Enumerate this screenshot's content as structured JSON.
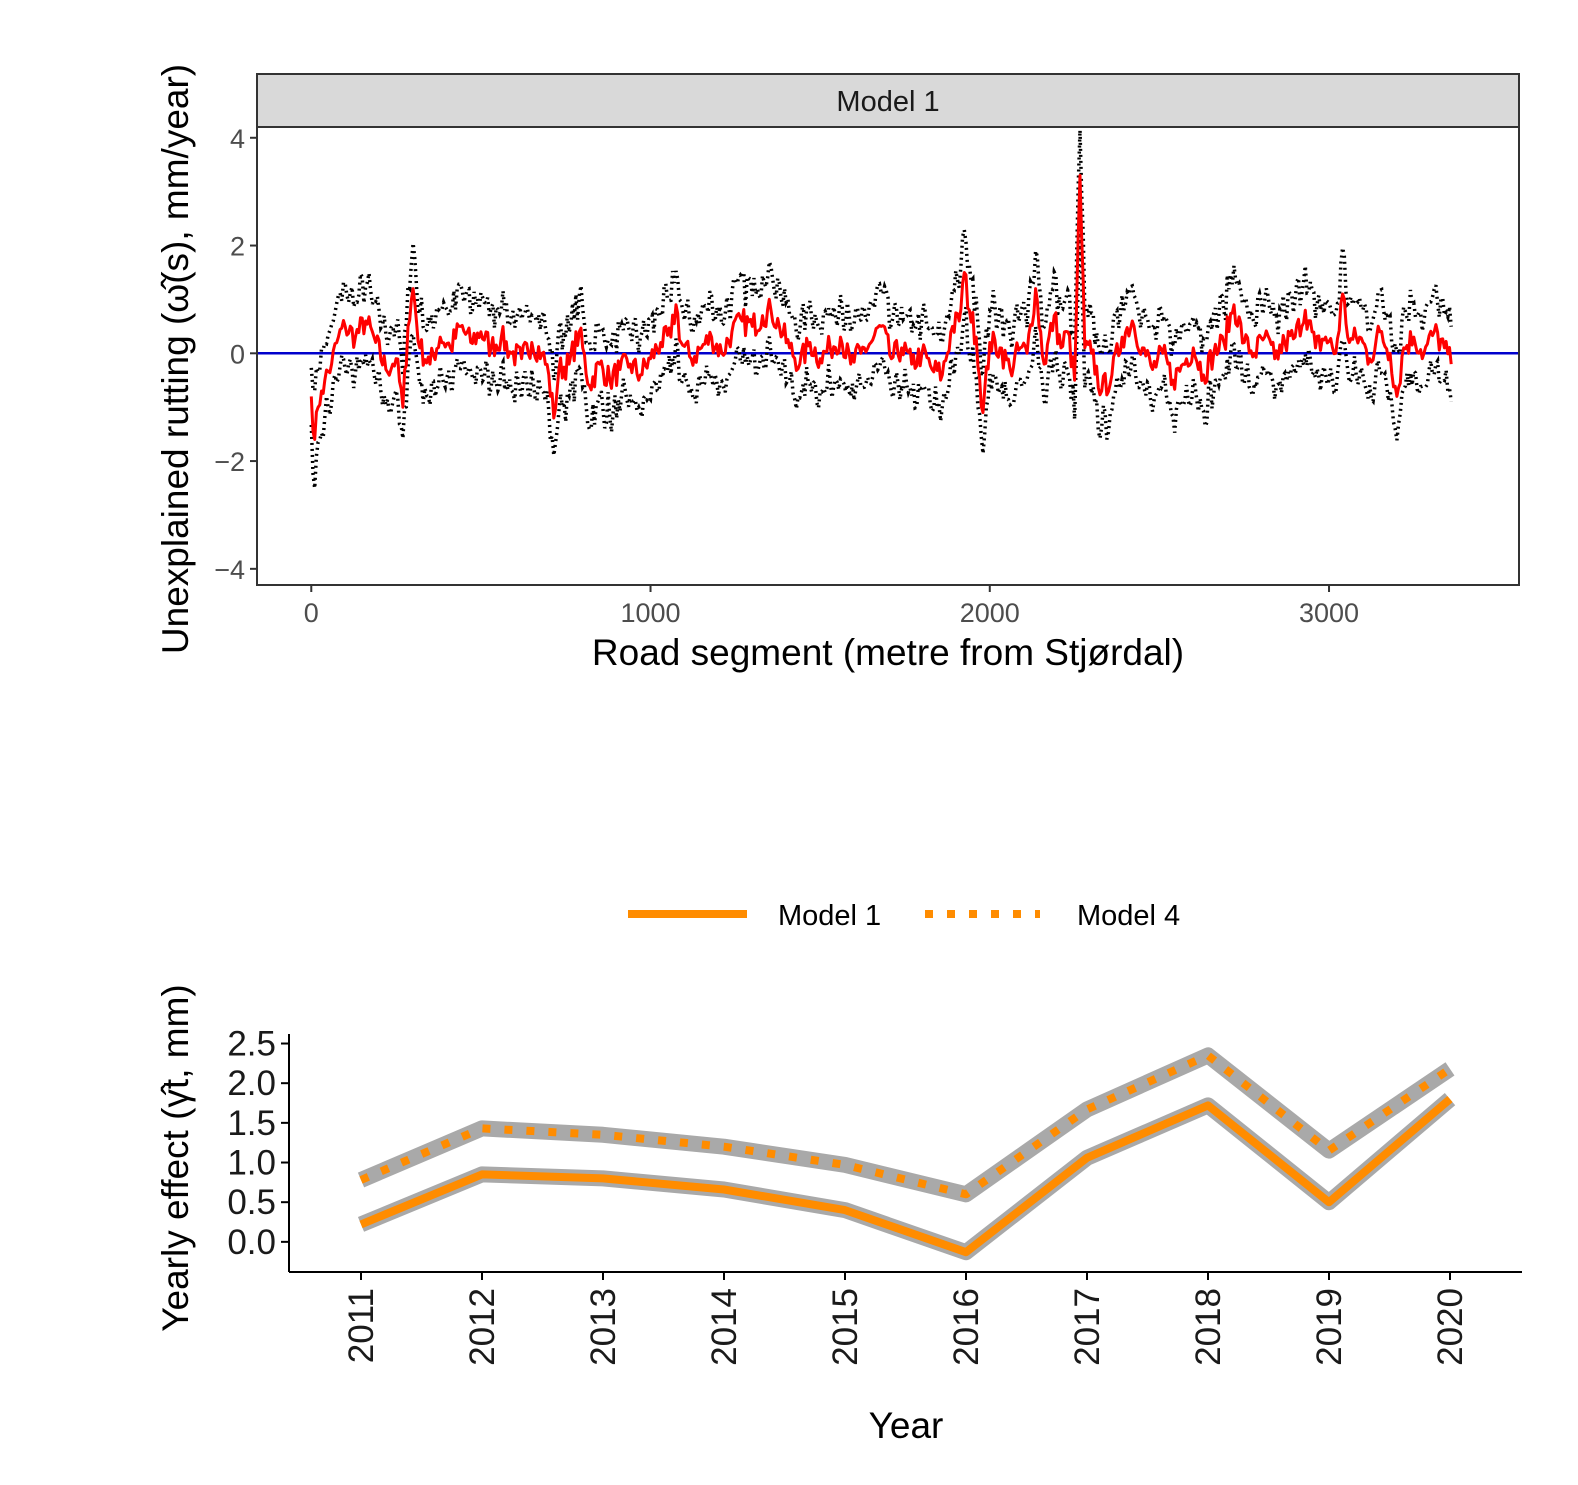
{
  "colors": {
    "estimate_line": "#ff0000",
    "interval_dots": "#000000",
    "zero_line": "#0000cc",
    "yearly_line": "#ff8c00",
    "ribbon": "#a9a9a9",
    "strip_fill": "#d9d9d9",
    "panel_border": "#333333"
  },
  "chart_data": [
    {
      "type": "line",
      "facet_label": "Model 1",
      "xlabel": "Road segment (metre from Stjørdal)",
      "ylabel": "Unexplained rutting (ω̂(s), mm/year)",
      "xlim": [
        -160,
        3560
      ],
      "ylim": [
        -4.3,
        4.2
      ],
      "xticks": [
        0,
        1000,
        2000,
        3000
      ],
      "xtick_labels": [
        "0",
        "1000",
        "2000",
        "3000"
      ],
      "yticks": [
        -4,
        -2,
        0,
        2,
        4
      ],
      "ytick_labels": [
        "−4",
        "−2",
        "0",
        "2",
        "4"
      ],
      "grid": false,
      "reference_line_y": 0,
      "series": [
        {
          "style": "solid",
          "x": [
            0,
            10,
            20,
            30,
            40,
            60,
            80,
            100,
            130,
            160,
            190,
            220,
            250,
            270,
            285,
            300,
            320,
            350,
            380,
            410,
            440,
            470,
            500,
            530,
            560,
            590,
            620,
            650,
            680,
            700,
            715,
            730,
            760,
            790,
            820,
            850,
            880,
            910,
            940,
            970,
            1000,
            1030,
            1060,
            1075,
            1090,
            1120,
            1150,
            1180,
            1210,
            1240,
            1270,
            1300,
            1330,
            1355,
            1380,
            1410,
            1440,
            1470,
            1500,
            1530,
            1560,
            1590,
            1620,
            1650,
            1680,
            1710,
            1740,
            1770,
            1800,
            1830,
            1860,
            1890,
            1910,
            1925,
            1940,
            1960,
            1980,
            2000,
            2030,
            2060,
            2090,
            2110,
            2135,
            2160,
            2190,
            2210,
            2230,
            2250,
            2266,
            2280,
            2300,
            2330,
            2360,
            2390,
            2420,
            2450,
            2480,
            2510,
            2540,
            2570,
            2600,
            2630,
            2660,
            2690,
            2720,
            2750,
            2780,
            2810,
            2840,
            2870,
            2900,
            2930,
            2960,
            2990,
            3020,
            3040,
            3060,
            3090,
            3120,
            3150,
            3180,
            3200,
            3220,
            3250,
            3280,
            3310,
            3340,
            3360
          ],
          "y": [
            -0.8,
            -1.6,
            -1.0,
            -0.7,
            -0.5,
            -0.2,
            0.3,
            0.5,
            0.3,
            0.6,
            0.2,
            -0.3,
            -0.1,
            -1.0,
            0.5,
            1.2,
            0.1,
            -0.2,
            0.3,
            0.1,
            0.5,
            0.2,
            0.4,
            0.1,
            0.3,
            0.0,
            -0.1,
            0.2,
            0.0,
            -0.4,
            -1.2,
            -0.3,
            -0.2,
            0.4,
            -0.6,
            -0.2,
            -0.5,
            -0.3,
            -0.2,
            -0.4,
            -0.1,
            0.2,
            0.3,
            0.9,
            0.2,
            -0.1,
            0.1,
            0.3,
            0.0,
            0.4,
            0.6,
            0.5,
            0.7,
            0.8,
            0.5,
            0.1,
            -0.2,
            0.2,
            -0.1,
            0.1,
            0.3,
            -0.2,
            0.0,
            0.2,
            0.5,
            -0.1,
            0.1,
            -0.2,
            0.0,
            -0.3,
            -0.4,
            0.5,
            0.6,
            1.5,
            0.8,
            0.3,
            -1.1,
            0.2,
            0.1,
            -0.3,
            0.1,
            0.0,
            1.2,
            -0.2,
            0.7,
            0.1,
            0.4,
            -0.5,
            3.3,
            0.1,
            0.0,
            -0.7,
            -0.4,
            0.3,
            0.6,
            0.1,
            -0.3,
            0.0,
            -0.5,
            -0.2,
            0.1,
            -0.4,
            0.0,
            0.2,
            0.9,
            0.2,
            0.0,
            0.3,
            -0.1,
            0.2,
            0.3,
            0.8,
            0.1,
            0.3,
            0.0,
            1.1,
            0.2,
            0.3,
            -0.1,
            0.4,
            0.0,
            -0.8,
            0.1,
            0.3,
            0.0,
            0.4,
            0.1,
            -0.2
          ]
        }
      ]
    },
    {
      "type": "line",
      "xlabel": "Year",
      "ylabel": "Yearly effect (γ̂t, mm)",
      "categories": [
        "2011",
        "2012",
        "2013",
        "2014",
        "2015",
        "2016",
        "2017",
        "2018",
        "2019",
        "2020"
      ],
      "ylim": [
        -0.38,
        2.62
      ],
      "yticks": [
        0.0,
        0.5,
        1.0,
        1.5,
        2.0,
        2.5
      ],
      "ytick_labels": [
        "0.0",
        "0.5",
        "1.0",
        "1.5",
        "2.0",
        "2.5"
      ],
      "grid": false,
      "legend_position": "top",
      "series": [
        {
          "name": "Model 1",
          "style": "solid",
          "values": [
            0.22,
            0.85,
            0.8,
            0.66,
            0.4,
            -0.13,
            1.06,
            1.72,
            0.5,
            1.8
          ]
        },
        {
          "name": "Model 4",
          "style": "dotted",
          "values": [
            0.78,
            1.43,
            1.35,
            1.2,
            0.97,
            0.6,
            1.67,
            2.35,
            1.15,
            2.18
          ]
        }
      ]
    }
  ]
}
